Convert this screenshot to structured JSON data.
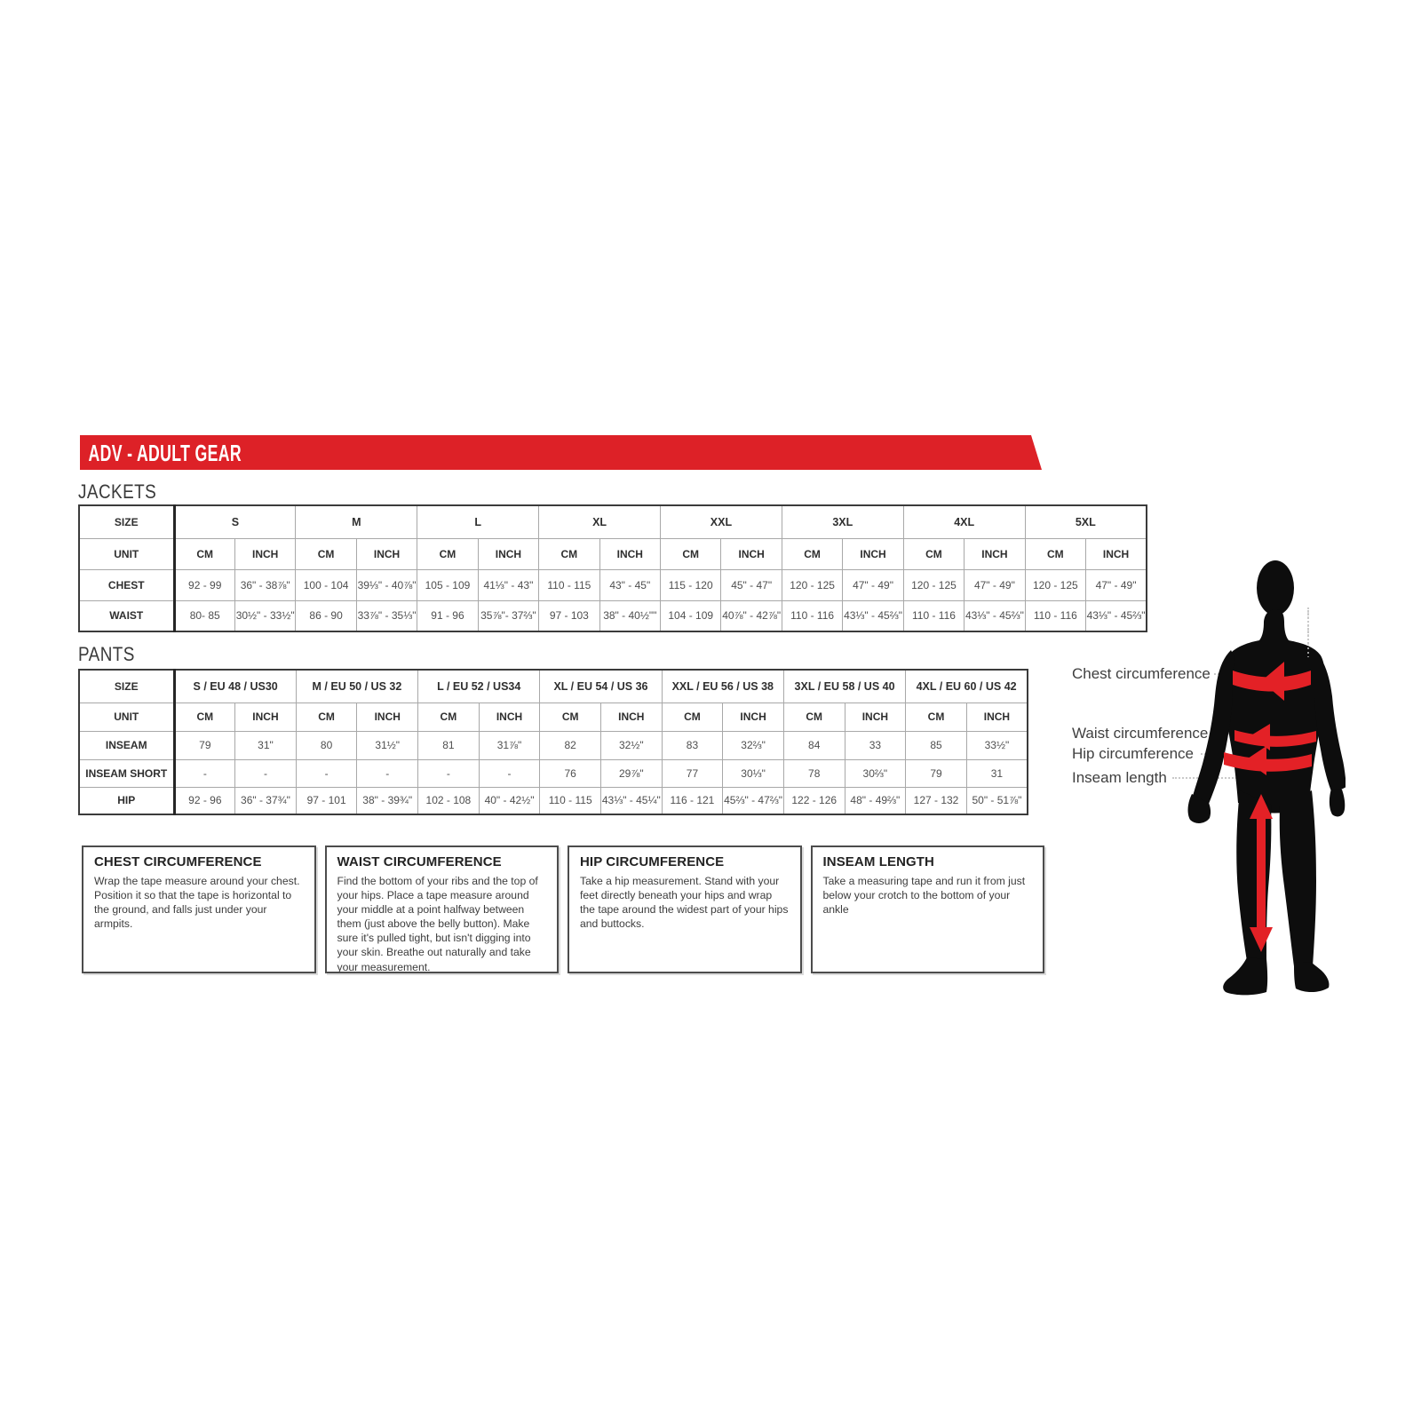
{
  "banner": {
    "title": "ADV - ADULT GEAR"
  },
  "sections": {
    "jackets_label": "JACKETS",
    "pants_label": "PANTS"
  },
  "colors": {
    "banner_red": "#dd2127",
    "arrow_red": "#e32126",
    "silhouette_black": "#0d0d0d"
  },
  "jackets_table": {
    "corner_label": "SIZE",
    "unit_label": "UNIT",
    "sizes": [
      "S",
      "M",
      "L",
      "XL",
      "XXL",
      "3XL",
      "4XL",
      "5XL"
    ],
    "units": [
      "CM",
      "INCH"
    ],
    "rows": [
      {
        "label": "CHEST",
        "cells": [
          "92 - 99",
          "36\" - 38⅞\"",
          "100 - 104",
          "39⅓\" - 40⅞\"",
          "105 - 109",
          "41⅓\" - 43\"",
          "110 - 115",
          "43\" - 45\"",
          "115 - 120",
          "45\" - 47\"",
          "120 - 125",
          "47\" - 49\"",
          "120 - 125",
          "47\" - 49\"",
          "120 - 125",
          "47\" - 49\""
        ]
      },
      {
        "label": "WAIST",
        "cells": [
          "80- 85",
          "30½\" - 33½\"",
          "86 - 90",
          "33⅞\" - 35⅓\"",
          "91 - 96",
          "35⅞\"- 37⅔\"",
          "97 - 103",
          "38\" - 40½\"\"",
          "104 - 109",
          "40⅞\" - 42⅞\"",
          "110 - 116",
          "43⅓\" - 45⅔\"",
          "110 - 116",
          "43⅓\" - 45⅔\"",
          "110 - 116",
          "43⅓\" - 45⅔\""
        ]
      }
    ]
  },
  "pants_table": {
    "corner_label": "SIZE",
    "unit_label": "UNIT",
    "sizes": [
      "S / EU 48 / US30",
      "M / EU 50 / US 32",
      "L / EU 52 / US34",
      "XL / EU 54 / US 36",
      "XXL / EU 56 / US 38",
      "3XL / EU 58 / US 40",
      "4XL / EU 60 / US 42"
    ],
    "units": [
      "CM",
      "INCH"
    ],
    "rows": [
      {
        "label": "INSEAM",
        "cells": [
          "79",
          "31\"",
          "80",
          "31½\"",
          "81",
          "31⅞\"",
          "82",
          "32½\"",
          "83",
          "32⅔\"",
          "84",
          "33",
          "85",
          "33½\""
        ]
      },
      {
        "label": "INSEAM SHORT",
        "cells": [
          "-",
          "-",
          "-",
          "-",
          "-",
          "-",
          "76",
          "29⅞\"",
          "77",
          "30⅓\"",
          "78",
          "30⅔\"",
          "79",
          "31"
        ]
      },
      {
        "label": "HIP",
        "cells": [
          "92 - 96",
          "36\" - 37¾\"",
          "97 - 101",
          "38\" - 39¾\"",
          "102 - 108",
          "40\" - 42½\"",
          "110 - 115",
          "43⅓\" - 45¼\"",
          "116 - 121",
          "45⅔\" - 47⅔\"",
          "122 - 126",
          "48\" - 49⅔\"",
          "127 - 132",
          "50\" - 51⅞\""
        ]
      }
    ]
  },
  "info_boxes": [
    {
      "title": "CHEST CIRCUMFERENCE",
      "body": "Wrap the tape measure around your chest. Position it so that the tape is horizontal to the ground, and falls just under your armpits."
    },
    {
      "title": "WAIST CIRCUMFERENCE",
      "body": "Find the bottom of your ribs and the top of your hips. Place a tape measure around your middle at a point halfway between them (just above the belly button). Make sure it's pulled tight, but isn't digging into your skin. Breathe out naturally and take your measurement."
    },
    {
      "title": "HIP CIRCUMFERENCE",
      "body": "Take a hip measurement. Stand with your feet directly beneath your hips and wrap the tape around the widest part of your hips and buttocks."
    },
    {
      "title": "INSEAM LENGTH",
      "body": "Take a measuring tape and run it from just below your crotch to the bottom of your ankle"
    }
  ],
  "figure": {
    "labels": [
      "Chest circumference",
      "Waist circumference",
      "Hip circumference",
      "Inseam length"
    ]
  }
}
